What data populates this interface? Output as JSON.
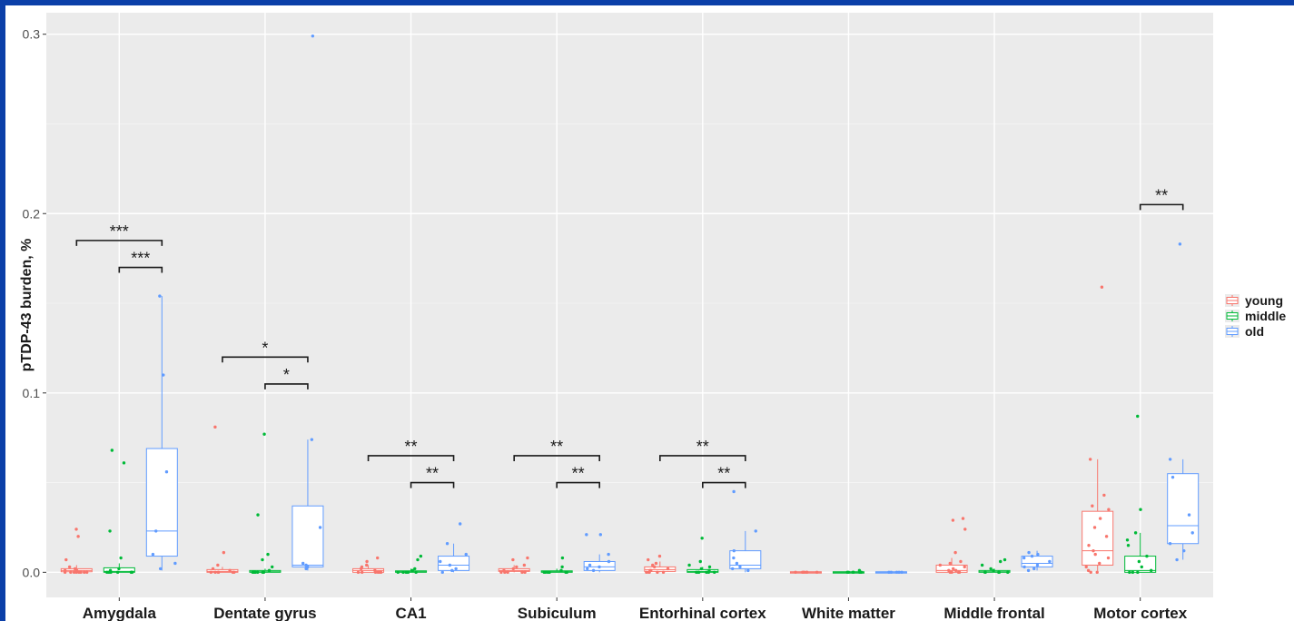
{
  "chart_data": {
    "type": "box",
    "ylabel": "pTDP-43 burden, %",
    "xlabel": "",
    "ylim": [
      -0.014,
      0.312
    ],
    "yticks": [
      0.0,
      0.1,
      0.2,
      0.3
    ],
    "ytick_labels": [
      "0.0",
      "0.1",
      "0.2",
      "0.3"
    ],
    "grid": true,
    "legend_position": "right",
    "groups": [
      {
        "name": "young",
        "color": "#F8766D"
      },
      {
        "name": "middle",
        "color": "#00BA38"
      },
      {
        "name": "old",
        "color": "#619CFF"
      }
    ],
    "categories": [
      "Amygdala",
      "Dentate gyrus",
      "CA1",
      "Subiculum",
      "Entorhinal cortex",
      "White matter",
      "Middle frontal",
      "Motor cortex"
    ],
    "boxes": [
      [
        {
          "q1": 0.0003,
          "median": 0.001,
          "q3": 0.002,
          "whisker_low": 0.0,
          "whisker_high": 0.004,
          "points": [
            0.024,
            0.02,
            0.007,
            0.003,
            0.002,
            0.001,
            0.001,
            0.0,
            0.0,
            0.0,
            0.0,
            0.0,
            0.0,
            0.0,
            0.0
          ]
        },
        {
          "q1": 0.0,
          "median": 0.0005,
          "q3": 0.0025,
          "whisker_low": 0.0,
          "whisker_high": 0.005,
          "points": [
            0.068,
            0.061,
            0.023,
            0.008,
            0.002,
            0.001,
            0.0,
            0.0,
            0.0,
            0.0,
            0.0,
            0.0,
            0.0
          ]
        },
        {
          "q1": 0.009,
          "median": 0.023,
          "q3": 0.069,
          "whisker_low": 0.001,
          "whisker_high": 0.154,
          "points": [
            0.154,
            0.11,
            0.056,
            0.023,
            0.01,
            0.005,
            0.002
          ]
        }
      ],
      [
        {
          "q1": 0.0,
          "median": 0.0005,
          "q3": 0.0015,
          "whisker_low": 0.0,
          "whisker_high": 0.003,
          "points": [
            0.081,
            0.011,
            0.004,
            0.002,
            0.001,
            0.0,
            0.0,
            0.0,
            0.0,
            0.0,
            0.0
          ]
        },
        {
          "q1": 0.0,
          "median": 0.0003,
          "q3": 0.001,
          "whisker_low": 0.0,
          "whisker_high": 0.002,
          "points": [
            0.077,
            0.032,
            0.01,
            0.007,
            0.003,
            0.001,
            0.0,
            0.0,
            0.0,
            0.0,
            0.0,
            0.0
          ]
        },
        {
          "q1": 0.003,
          "median": 0.004,
          "q3": 0.037,
          "whisker_low": 0.001,
          "whisker_high": 0.074,
          "points": [
            0.299,
            0.074,
            0.025,
            0.005,
            0.004,
            0.003,
            0.002
          ]
        }
      ],
      [
        {
          "q1": 0.0,
          "median": 0.001,
          "q3": 0.002,
          "whisker_low": 0.0,
          "whisker_high": 0.004,
          "points": [
            0.008,
            0.006,
            0.004,
            0.003,
            0.002,
            0.001,
            0.0,
            0.0,
            0.0,
            0.0,
            0.0,
            0.0
          ]
        },
        {
          "q1": 0.0,
          "median": 0.0003,
          "q3": 0.0008,
          "whisker_low": 0.0,
          "whisker_high": 0.002,
          "points": [
            0.009,
            0.007,
            0.002,
            0.001,
            0.0,
            0.0,
            0.0,
            0.0,
            0.0,
            0.0
          ]
        },
        {
          "q1": 0.001,
          "median": 0.004,
          "q3": 0.009,
          "whisker_low": 0.0,
          "whisker_high": 0.016,
          "points": [
            0.027,
            0.016,
            0.01,
            0.006,
            0.004,
            0.002,
            0.001,
            0.0
          ]
        }
      ],
      [
        {
          "q1": 0.0005,
          "median": 0.001,
          "q3": 0.002,
          "whisker_low": 0.0,
          "whisker_high": 0.004,
          "points": [
            0.008,
            0.007,
            0.004,
            0.003,
            0.002,
            0.001,
            0.0,
            0.0,
            0.0,
            0.0,
            0.0
          ]
        },
        {
          "q1": 0.0,
          "median": 0.0003,
          "q3": 0.0008,
          "whisker_low": 0.0,
          "whisker_high": 0.002,
          "points": [
            0.008,
            0.003,
            0.001,
            0.0,
            0.0,
            0.0,
            0.0,
            0.0,
            0.0
          ]
        },
        {
          "q1": 0.001,
          "median": 0.003,
          "q3": 0.006,
          "whisker_low": 0.0,
          "whisker_high": 0.01,
          "points": [
            0.021,
            0.021,
            0.01,
            0.006,
            0.004,
            0.003,
            0.002,
            0.001
          ]
        }
      ],
      [
        {
          "q1": 0.0005,
          "median": 0.0015,
          "q3": 0.003,
          "whisker_low": 0.0,
          "whisker_high": 0.006,
          "points": [
            0.009,
            0.007,
            0.005,
            0.004,
            0.003,
            0.002,
            0.001,
            0.001,
            0.0,
            0.0,
            0.0,
            0.0,
            0.0
          ]
        },
        {
          "q1": 0.0,
          "median": 0.0005,
          "q3": 0.0015,
          "whisker_low": 0.0,
          "whisker_high": 0.003,
          "points": [
            0.019,
            0.006,
            0.004,
            0.003,
            0.002,
            0.001,
            0.0,
            0.0,
            0.0,
            0.0,
            0.0,
            0.0
          ]
        },
        {
          "q1": 0.002,
          "median": 0.004,
          "q3": 0.012,
          "whisker_low": 0.0,
          "whisker_high": 0.023,
          "points": [
            0.045,
            0.023,
            0.012,
            0.008,
            0.005,
            0.003,
            0.002,
            0.001
          ]
        }
      ],
      [
        {
          "q1": -0.0003,
          "median": 0.0,
          "q3": 0.0003,
          "whisker_low": -0.0005,
          "whisker_high": 0.0005,
          "points": [
            0.0,
            0.0,
            0.0,
            0.0,
            0.0,
            0.0,
            0.0
          ]
        },
        {
          "q1": -0.0003,
          "median": 0.0,
          "q3": 0.0003,
          "whisker_low": -0.0005,
          "whisker_high": 0.0005,
          "points": [
            0.001,
            0.0,
            0.0,
            0.0,
            0.0,
            0.0,
            0.0
          ]
        },
        {
          "q1": -0.0003,
          "median": 0.0,
          "q3": 0.0003,
          "whisker_low": -0.0005,
          "whisker_high": 0.0005,
          "points": [
            0.0,
            0.0,
            0.0,
            0.0,
            0.0
          ]
        }
      ],
      [
        {
          "q1": 0.0,
          "median": 0.001,
          "q3": 0.004,
          "whisker_low": 0.0,
          "whisker_high": 0.008,
          "points": [
            0.03,
            0.029,
            0.024,
            0.011,
            0.006,
            0.005,
            0.004,
            0.003,
            0.002,
            0.001,
            0.001,
            0.0,
            0.0,
            0.0,
            0.0
          ]
        },
        {
          "q1": 0.0,
          "median": 0.0003,
          "q3": 0.001,
          "whisker_low": 0.0,
          "whisker_high": 0.002,
          "points": [
            0.007,
            0.006,
            0.004,
            0.002,
            0.001,
            0.0,
            0.0,
            0.0,
            0.0,
            0.0
          ]
        },
        {
          "q1": 0.003,
          "median": 0.005,
          "q3": 0.009,
          "whisker_low": 0.001,
          "whisker_high": 0.012,
          "points": [
            0.011,
            0.01,
            0.009,
            0.008,
            0.006,
            0.004,
            0.003,
            0.002,
            0.001
          ]
        }
      ],
      [
        {
          "q1": 0.004,
          "median": 0.012,
          "q3": 0.034,
          "whisker_low": 0.0,
          "whisker_high": 0.063,
          "points": [
            0.159,
            0.063,
            0.043,
            0.037,
            0.035,
            0.03,
            0.025,
            0.02,
            0.015,
            0.012,
            0.01,
            0.008,
            0.005,
            0.003,
            0.001,
            0.0,
            0.0
          ]
        },
        {
          "q1": 0.0,
          "median": 0.001,
          "q3": 0.009,
          "whisker_low": 0.0,
          "whisker_high": 0.022,
          "points": [
            0.087,
            0.035,
            0.022,
            0.018,
            0.015,
            0.009,
            0.006,
            0.003,
            0.001,
            0.0,
            0.0,
            0.0
          ]
        },
        {
          "q1": 0.016,
          "median": 0.026,
          "q3": 0.055,
          "whisker_low": 0.007,
          "whisker_high": 0.063,
          "points": [
            0.183,
            0.063,
            0.053,
            0.032,
            0.022,
            0.016,
            0.012,
            0.007
          ]
        }
      ]
    ],
    "significance": [
      {
        "category": 0,
        "from": 0,
        "to": 2,
        "y": 0.185,
        "label": "***"
      },
      {
        "category": 0,
        "from": 1,
        "to": 2,
        "y": 0.17,
        "label": "***"
      },
      {
        "category": 1,
        "from": 0,
        "to": 2,
        "y": 0.12,
        "label": "*"
      },
      {
        "category": 1,
        "from": 1,
        "to": 2,
        "y": 0.105,
        "label": "*"
      },
      {
        "category": 2,
        "from": 0,
        "to": 2,
        "y": 0.065,
        "label": "**"
      },
      {
        "category": 2,
        "from": 1,
        "to": 2,
        "y": 0.05,
        "label": "**"
      },
      {
        "category": 3,
        "from": 0,
        "to": 2,
        "y": 0.065,
        "label": "**"
      },
      {
        "category": 3,
        "from": 1,
        "to": 2,
        "y": 0.05,
        "label": "**"
      },
      {
        "category": 4,
        "from": 0,
        "to": 2,
        "y": 0.065,
        "label": "**"
      },
      {
        "category": 4,
        "from": 1,
        "to": 2,
        "y": 0.05,
        "label": "**"
      },
      {
        "category": 7,
        "from": 1,
        "to": 2,
        "y": 0.205,
        "label": "**"
      }
    ]
  }
}
